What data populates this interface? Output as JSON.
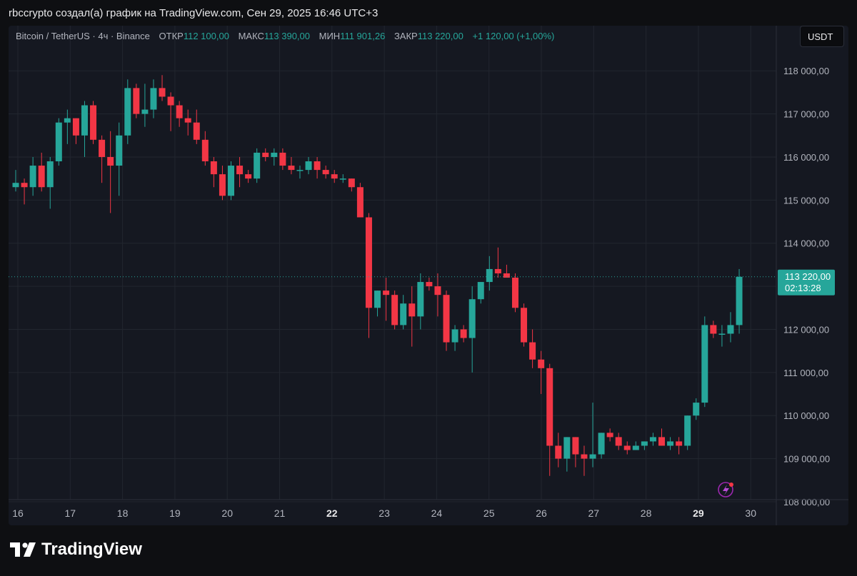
{
  "header": {
    "text": "rbccrypto создал(а) график на TradingView.com, Сен 29, 2025 16:46 UTC+3"
  },
  "legend": {
    "symbol": "Bitcoin / TetherUS · 4ч · Binance",
    "open_label": "ОТКР",
    "open_value": "112 100,00",
    "high_label": "МАКС",
    "high_value": "113 390,00",
    "low_label": "МИН",
    "low_value": "111 901,26",
    "close_label": "ЗАКР",
    "close_value": "113 220,00",
    "change": "+1 120,00 (+1,00%)"
  },
  "currency_button": "USDT",
  "last_price": {
    "value": "113 220,00",
    "countdown": "02:13:28"
  },
  "brand": {
    "name": "TradingView"
  },
  "colors": {
    "up": "#26a69a",
    "down": "#f23645",
    "grid": "#22262f",
    "bg": "#151821"
  },
  "chart_data": {
    "type": "candlestick",
    "title": "Bitcoin / TetherUS · 4ч · Binance",
    "ylim": [
      107900,
      118600
    ],
    "y_ticks": [
      108000,
      109000,
      110000,
      111000,
      112000,
      113000,
      114000,
      115000,
      116000,
      117000,
      118000
    ],
    "y_tick_labels": [
      "108 000,00",
      "109 000,00",
      "110 000,00",
      "111 000,00",
      "112 000,00",
      "113 000,00",
      "114 000,00",
      "115 000,00",
      "116 000,00",
      "117 000,00",
      "118 000,00"
    ],
    "x_tick_labels": [
      "16",
      "17",
      "18",
      "19",
      "20",
      "21",
      "22",
      "23",
      "24",
      "25",
      "26",
      "27",
      "28",
      "29",
      "30"
    ],
    "bold_x_ticks": [
      "22",
      "29"
    ],
    "grid": true,
    "last_price": 113220,
    "ohlc": [
      [
        115300,
        115700,
        115200,
        115400
      ],
      [
        115400,
        115500,
        114900,
        115300
      ],
      [
        115300,
        116000,
        115100,
        115800
      ],
      [
        115800,
        116100,
        115200,
        115300
      ],
      [
        115300,
        116000,
        114800,
        115900
      ],
      [
        115900,
        116900,
        115800,
        116800
      ],
      [
        116800,
        117100,
        116300,
        116900
      ],
      [
        116900,
        116900,
        116300,
        116500
      ],
      [
        116500,
        117300,
        116000,
        117200
      ],
      [
        117200,
        117300,
        116300,
        116400
      ],
      [
        116400,
        116500,
        115400,
        116000
      ],
      [
        116000,
        116600,
        114700,
        115800
      ],
      [
        115800,
        116800,
        115100,
        116500
      ],
      [
        116500,
        117800,
        116300,
        117600
      ],
      [
        117600,
        117700,
        116900,
        117000
      ],
      [
        117000,
        117700,
        116700,
        117100
      ],
      [
        117100,
        117800,
        116900,
        117600
      ],
      [
        117600,
        117900,
        117300,
        117400
      ],
      [
        117400,
        117500,
        116600,
        117200
      ],
      [
        117200,
        117300,
        116700,
        116900
      ],
      [
        116900,
        117100,
        116500,
        116800
      ],
      [
        116800,
        117100,
        116300,
        116400
      ],
      [
        116400,
        116600,
        115800,
        115900
      ],
      [
        115900,
        116000,
        115300,
        115600
      ],
      [
        115600,
        115800,
        115000,
        115100
      ],
      [
        115100,
        115900,
        115000,
        115800
      ],
      [
        115800,
        116000,
        115300,
        115600
      ],
      [
        115600,
        115700,
        115400,
        115500
      ],
      [
        115500,
        116200,
        115400,
        116100
      ],
      [
        116100,
        116200,
        115900,
        116000
      ],
      [
        116000,
        116200,
        115800,
        116100
      ],
      [
        116100,
        116200,
        115700,
        115800
      ],
      [
        115800,
        116000,
        115600,
        115700
      ],
      [
        115700,
        115800,
        115500,
        115700
      ],
      [
        115700,
        116000,
        115600,
        115900
      ],
      [
        115900,
        116000,
        115500,
        115700
      ],
      [
        115700,
        115800,
        115500,
        115600
      ],
      [
        115600,
        115700,
        115400,
        115500
      ],
      [
        115500,
        115600,
        115400,
        115500
      ],
      [
        115500,
        115500,
        115200,
        115300
      ],
      [
        115300,
        115400,
        114600,
        114600
      ],
      [
        114600,
        114700,
        111800,
        112500
      ],
      [
        112500,
        112900,
        112300,
        112900
      ],
      [
        112900,
        113200,
        112200,
        112800
      ],
      [
        112800,
        112900,
        112000,
        112100
      ],
      [
        112100,
        112800,
        112000,
        112600
      ],
      [
        112600,
        113000,
        111600,
        112300
      ],
      [
        112300,
        113300,
        112000,
        113100
      ],
      [
        113100,
        113200,
        112900,
        113000
      ],
      [
        113000,
        113300,
        112300,
        112800
      ],
      [
        112800,
        112900,
        111500,
        111700
      ],
      [
        111700,
        112100,
        111500,
        112000
      ],
      [
        112000,
        112100,
        111700,
        111800
      ],
      [
        111800,
        113000,
        111000,
        112700
      ],
      [
        112700,
        113100,
        112600,
        113100
      ],
      [
        113100,
        113700,
        112900,
        113400
      ],
      [
        113400,
        113900,
        113200,
        113300
      ],
      [
        113300,
        113500,
        113200,
        113200
      ],
      [
        113200,
        113300,
        112400,
        112500
      ],
      [
        112500,
        112600,
        111600,
        111700
      ],
      [
        111700,
        112000,
        111100,
        111300
      ],
      [
        111300,
        111500,
        110500,
        111100
      ],
      [
        111100,
        111200,
        108600,
        109300
      ],
      [
        109300,
        109600,
        108800,
        109000
      ],
      [
        109000,
        109500,
        108700,
        109500
      ],
      [
        109500,
        109500,
        108800,
        109100
      ],
      [
        109100,
        109300,
        108600,
        109000
      ],
      [
        109000,
        110300,
        108800,
        109100
      ],
      [
        109100,
        109600,
        109000,
        109600
      ],
      [
        109600,
        109700,
        109400,
        109500
      ],
      [
        109500,
        109600,
        109200,
        109300
      ],
      [
        109300,
        109400,
        109100,
        109200
      ],
      [
        109200,
        109400,
        109200,
        109300
      ],
      [
        109300,
        109400,
        109200,
        109400
      ],
      [
        109400,
        109600,
        109300,
        109500
      ],
      [
        109500,
        109700,
        109300,
        109300
      ],
      [
        109300,
        109500,
        109200,
        109400
      ],
      [
        109400,
        109500,
        109100,
        109300
      ],
      [
        109300,
        110000,
        109200,
        110000
      ],
      [
        110000,
        110400,
        109900,
        110300
      ],
      [
        110300,
        112300,
        110200,
        112100
      ],
      [
        112100,
        112200,
        111800,
        111900
      ],
      [
        111900,
        112100,
        111600,
        111900
      ],
      [
        111900,
        112400,
        111700,
        112100
      ],
      [
        112100,
        113400,
        111900,
        113220
      ]
    ]
  }
}
